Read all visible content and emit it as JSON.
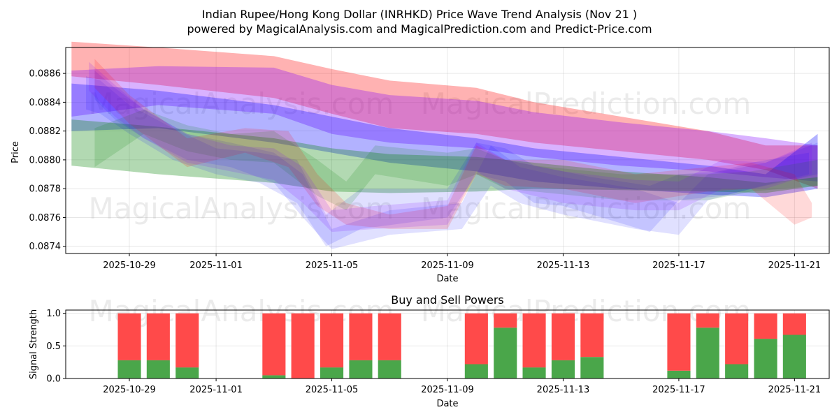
{
  "page": {
    "title_line1": "Indian Rupee/Hong Kong Dollar (INRHKD) Price Wave Trend Analysis (Nov 21 )",
    "title_line2": "powered by MagicalAnalysis.com and MagicalPrediction.com and Predict-Price.com",
    "watermark_1": "MagicalAnalysis.com",
    "watermark_2": "MagicalPrediction.com"
  },
  "chart_data": [
    {
      "type": "area",
      "title": "",
      "xlabel": "Date",
      "ylabel": "Price",
      "x_tick_labels": [
        "2025-10-29",
        "2025-11-01",
        "2025-11-05",
        "2025-11-09",
        "2025-11-13",
        "2025-11-17",
        "2025-11-21"
      ],
      "x_tick_days": [
        2,
        5,
        9,
        13,
        17,
        21,
        25
      ],
      "x_range_days": [
        -0.2,
        26.2
      ],
      "y_ticks": [
        0.0874,
        0.0876,
        0.0878,
        0.088,
        0.0882,
        0.0884,
        0.0886
      ],
      "y_tick_labels": [
        "0.0874",
        "0.0876",
        "0.0878",
        "0.0880",
        "0.0882",
        "0.0884",
        "0.0886"
      ],
      "ylim": [
        0.08735,
        0.08878
      ],
      "grid": true,
      "bands": [
        {
          "name": "red-wide",
          "color": "#ff0000",
          "opacity": 0.3,
          "x": [
            0,
            3,
            7,
            9,
            11,
            14,
            16,
            19,
            22,
            24,
            25.8
          ],
          "upper": [
            0.08882,
            0.08878,
            0.08872,
            0.08863,
            0.08855,
            0.0885,
            0.0884,
            0.0883,
            0.0882,
            0.0881,
            0.0881
          ],
          "lower": [
            0.08858,
            0.08852,
            0.08843,
            0.08832,
            0.08822,
            0.08818,
            0.08812,
            0.08806,
            0.088,
            0.08793,
            0.0878
          ]
        },
        {
          "name": "purple-wide",
          "color": "#8000ff",
          "opacity": 0.3,
          "x": [
            0,
            3,
            7,
            9,
            11,
            14,
            16,
            19,
            22,
            24,
            25.8
          ],
          "upper": [
            0.08862,
            0.08865,
            0.08864,
            0.08852,
            0.08845,
            0.08841,
            0.08833,
            0.08826,
            0.0882,
            0.08815,
            0.0881
          ],
          "lower": [
            0.0883,
            0.08838,
            0.08832,
            0.08818,
            0.08812,
            0.08808,
            0.08802,
            0.08796,
            0.08792,
            0.08788,
            0.08785
          ]
        },
        {
          "name": "blue-wide",
          "color": "#0000ff",
          "opacity": 0.3,
          "x": [
            0,
            3,
            7,
            9,
            11,
            14,
            16,
            19,
            22,
            24,
            25.8
          ],
          "upper": [
            0.08853,
            0.08848,
            0.08838,
            0.0883,
            0.08822,
            0.08815,
            0.08808,
            0.08802,
            0.08796,
            0.0879,
            0.08818
          ],
          "lower": [
            0.0882,
            0.08822,
            0.08812,
            0.08805,
            0.08798,
            0.08792,
            0.08785,
            0.0878,
            0.08776,
            0.08774,
            0.0878
          ]
        },
        {
          "name": "green-wide",
          "color": "#008000",
          "opacity": 0.3,
          "x": [
            0,
            3,
            7,
            9,
            11,
            14,
            16,
            19,
            22,
            24,
            25.8
          ],
          "upper": [
            0.08828,
            0.08823,
            0.08815,
            0.08808,
            0.08804,
            0.08802,
            0.08798,
            0.08792,
            0.08788,
            0.08784,
            0.08788
          ],
          "lower": [
            0.08796,
            0.0879,
            0.08784,
            0.08778,
            0.08777,
            0.08778,
            0.0878,
            0.08779,
            0.08778,
            0.08777,
            0.08782
          ]
        },
        {
          "name": "blue-wave-1",
          "color": "#0000ff",
          "opacity": 0.12,
          "x": [
            0.5,
            1.0,
            2.0,
            3.5,
            5.0,
            6.5,
            7.8,
            8.8,
            10.0,
            13.0,
            14.0,
            15.0,
            16.0,
            17.0,
            18.0,
            20.0,
            21.0,
            22.5,
            24.0,
            25.8
          ],
          "upper": [
            0.08858,
            0.08855,
            0.08838,
            0.08822,
            0.08808,
            0.08805,
            0.088,
            0.08762,
            0.0878,
            0.0878,
            0.08812,
            0.08808,
            0.08796,
            0.08792,
            0.08788,
            0.08782,
            0.0879,
            0.08792,
            0.08798,
            0.08812
          ],
          "lower": [
            0.08835,
            0.08832,
            0.08818,
            0.088,
            0.0879,
            0.08784,
            0.0877,
            0.0874,
            0.08752,
            0.0876,
            0.0879,
            0.08785,
            0.0877,
            0.08768,
            0.08762,
            0.0875,
            0.08772,
            0.08775,
            0.08782,
            0.0879
          ]
        },
        {
          "name": "blue-wave-2",
          "color": "#0000ff",
          "opacity": 0.12,
          "x": [
            0.8,
            1.5,
            2.5,
            4.0,
            5.5,
            7.0,
            8.0,
            9.0,
            11.0,
            13.5,
            14.5,
            15.5,
            17.0,
            19.5,
            21.0,
            22.0,
            23.5,
            25.5
          ],
          "upper": [
            0.08862,
            0.0885,
            0.08835,
            0.08818,
            0.08812,
            0.08805,
            0.0879,
            0.08752,
            0.08765,
            0.0877,
            0.0881,
            0.08795,
            0.08788,
            0.0878,
            0.0877,
            0.0879,
            0.08798,
            0.08805
          ],
          "lower": [
            0.08842,
            0.08828,
            0.08815,
            0.088,
            0.08795,
            0.08784,
            0.0876,
            0.08738,
            0.08748,
            0.08752,
            0.08782,
            0.0877,
            0.08762,
            0.08752,
            0.08748,
            0.08772,
            0.0878,
            0.0879
          ]
        },
        {
          "name": "green-wave",
          "color": "#008000",
          "opacity": 0.15,
          "x": [
            0.8,
            2.5,
            4.0,
            5.5,
            7.0,
            8.5,
            9.5,
            10.5,
            13.0,
            14.0,
            15.0,
            16.0,
            19.0,
            22.0,
            23.5,
            25.8
          ],
          "upper": [
            0.08822,
            0.08835,
            0.08824,
            0.08818,
            0.0882,
            0.088,
            0.08785,
            0.0881,
            0.08805,
            0.08808,
            0.088,
            0.08796,
            0.0879,
            0.0879,
            0.08792,
            0.088
          ],
          "lower": [
            0.08795,
            0.08818,
            0.08806,
            0.088,
            0.08798,
            0.08775,
            0.08765,
            0.0879,
            0.08782,
            0.0879,
            0.0878,
            0.08778,
            0.08772,
            0.08772,
            0.08778,
            0.08782
          ]
        },
        {
          "name": "red-wave",
          "color": "#ff0000",
          "opacity": 0.15,
          "x": [
            0.8,
            2.0,
            4.0,
            6.0,
            7.5,
            8.5,
            9.5,
            11.0,
            13.0,
            14.0,
            15.0,
            17.0,
            19.5,
            22.0,
            23.5,
            25.0,
            25.6
          ],
          "upper": [
            0.0887,
            0.08845,
            0.08815,
            0.08822,
            0.0882,
            0.0879,
            0.0877,
            0.08762,
            0.08768,
            0.0881,
            0.088,
            0.088,
            0.0879,
            0.08795,
            0.08798,
            0.0879,
            0.0877
          ],
          "lower": [
            0.0885,
            0.08825,
            0.08795,
            0.08805,
            0.08795,
            0.08768,
            0.08755,
            0.08752,
            0.08752,
            0.0879,
            0.08782,
            0.0878,
            0.0877,
            0.08778,
            0.0878,
            0.08755,
            0.0876
          ]
        },
        {
          "name": "purple-wave",
          "color": "#8000ff",
          "opacity": 0.15,
          "x": [
            0.6,
            1.5,
            2.5,
            4.0,
            5.5,
            7.0,
            8.0,
            9.0,
            10.5,
            13.0,
            14.0,
            15.0,
            17.0,
            19.5,
            21.0,
            22.5,
            24.0,
            25.6
          ],
          "upper": [
            0.08868,
            0.08852,
            0.08835,
            0.08818,
            0.0881,
            0.08808,
            0.08795,
            0.08765,
            0.08768,
            0.08772,
            0.08812,
            0.088,
            0.08792,
            0.08786,
            0.08785,
            0.088,
            0.08798,
            0.08812
          ],
          "lower": [
            0.08848,
            0.0883,
            0.08815,
            0.08798,
            0.08792,
            0.08786,
            0.0877,
            0.0875,
            0.08752,
            0.08755,
            0.08792,
            0.0878,
            0.0877,
            0.08765,
            0.08765,
            0.0878,
            0.0878,
            0.0879
          ]
        }
      ]
    },
    {
      "type": "bar",
      "title": "Buy and Sell Powers",
      "xlabel": "Date",
      "ylabel": "Signal Strength",
      "x_tick_labels": [
        "2025-10-29",
        "2025-11-01",
        "2025-11-05",
        "2025-11-09",
        "2025-11-13",
        "2025-11-17",
        "2025-11-21"
      ],
      "x_tick_days": [
        2,
        5,
        9,
        13,
        17,
        21,
        25
      ],
      "y_ticks": [
        0.0,
        0.5,
        1.0
      ],
      "y_tick_labels": [
        "0.0",
        "0.5",
        "1.0"
      ],
      "ylim": [
        0,
        1.05
      ],
      "grid": true,
      "days": [
        2,
        3,
        4,
        7,
        8,
        9,
        10,
        11,
        14,
        15,
        16,
        17,
        18,
        21,
        22,
        23,
        24,
        25
      ],
      "series": [
        {
          "name": "Buy",
          "color": "#4aa64a",
          "values": [
            0.28,
            0.28,
            0.17,
            0.05,
            0.0,
            0.17,
            0.28,
            0.28,
            0.22,
            0.78,
            0.17,
            0.28,
            0.33,
            0.12,
            0.78,
            0.22,
            0.61,
            0.67
          ]
        },
        {
          "name": "Sell",
          "color": "#ff4a4a",
          "values": [
            0.72,
            0.72,
            0.83,
            0.95,
            1.0,
            0.83,
            0.72,
            0.72,
            0.78,
            0.22,
            0.83,
            0.72,
            0.67,
            0.88,
            0.22,
            0.78,
            0.39,
            0.33
          ]
        }
      ]
    }
  ]
}
